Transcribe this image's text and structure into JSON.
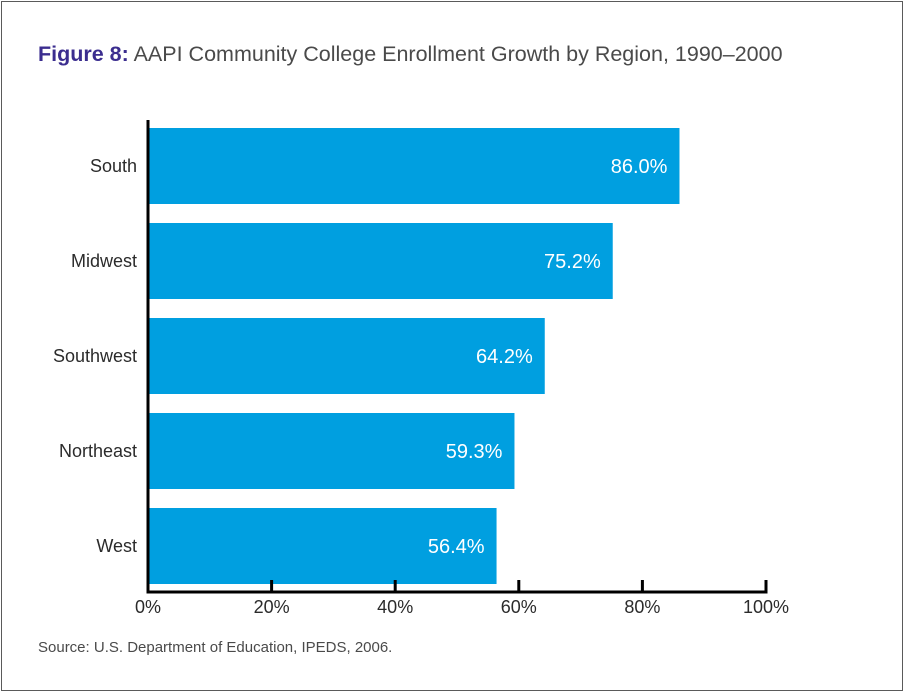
{
  "figure": {
    "number_label": "Figure 8:",
    "title": "AAPI Community College Enrollment Growth by Region, 1990–2000",
    "source": "Source: U.S. Department of Education, IPEDS, 2006."
  },
  "chart_data": {
    "type": "bar",
    "orientation": "horizontal",
    "categories": [
      "South",
      "Midwest",
      "Southwest",
      "Northeast",
      "West"
    ],
    "values": [
      86.0,
      75.2,
      64.2,
      59.3,
      56.4
    ],
    "value_labels": [
      "86.0%",
      "75.2%",
      "64.2%",
      "59.3%",
      "56.4%"
    ],
    "x_ticks": [
      0,
      20,
      40,
      60,
      80,
      100
    ],
    "x_tick_labels": [
      "0%",
      "20%",
      "40%",
      "60%",
      "80%",
      "100%"
    ],
    "xlim": [
      0,
      100
    ],
    "grid": false,
    "bar_color": "#009fe0"
  }
}
